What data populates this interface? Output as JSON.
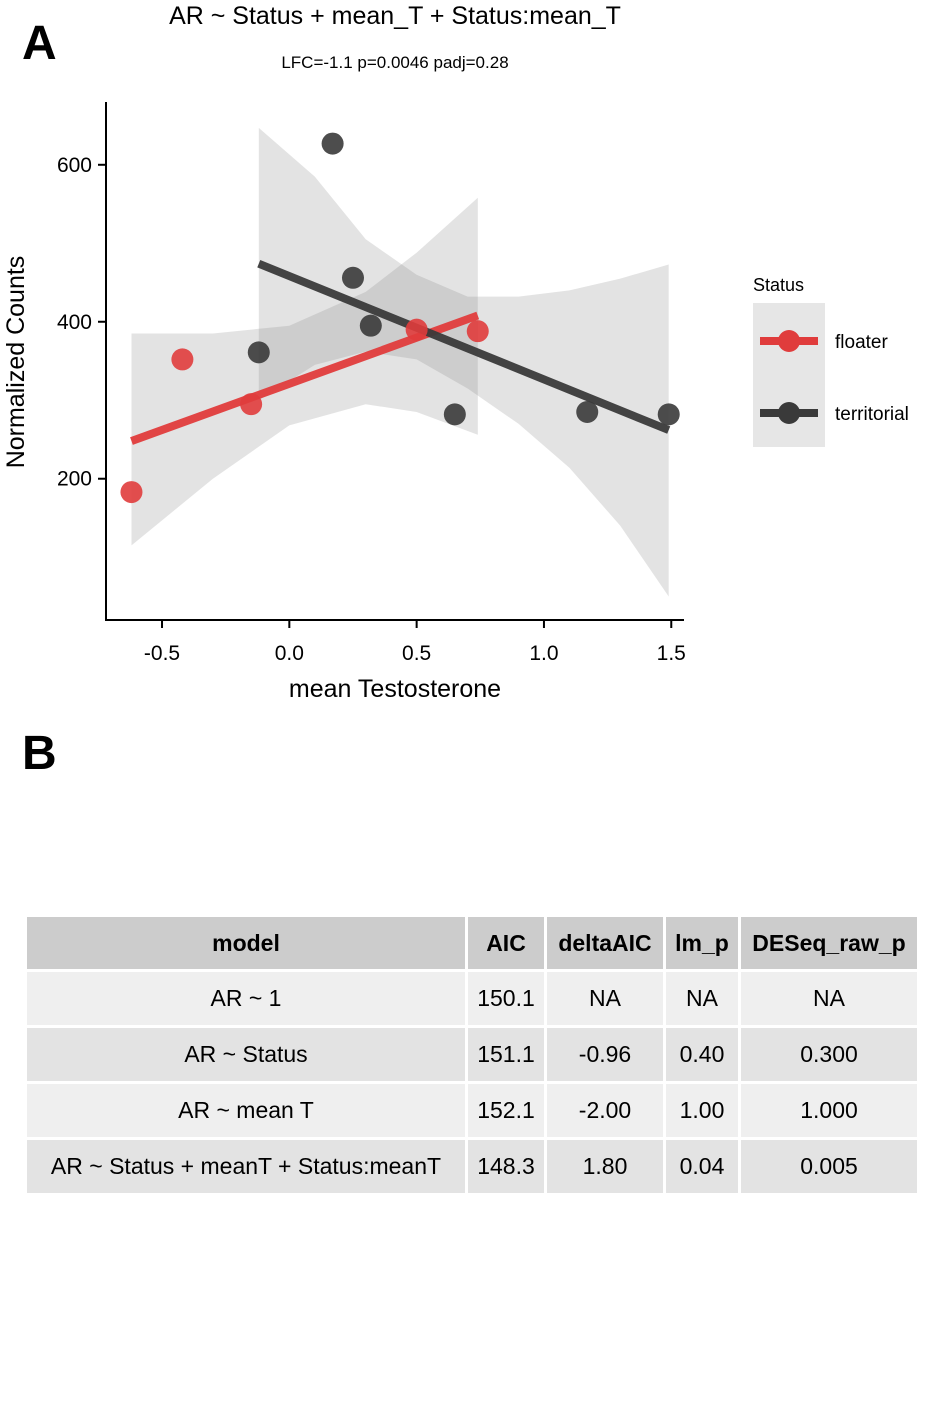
{
  "panels": {
    "a": "A",
    "b": "B"
  },
  "chart_data": {
    "type": "scatter",
    "title": "AR ~ Status + mean_T + Status:mean_T",
    "subtitle": "LFC=-1.1 p=0.0046 padj=0.28",
    "xlabel": "mean Testosterone",
    "ylabel": "Normalized Counts",
    "xlim": [
      -0.72,
      1.55
    ],
    "ylim": [
      20,
      680
    ],
    "x_ticks": [
      -0.5,
      0.0,
      0.5,
      1.0,
      1.5
    ],
    "x_tick_labels": [
      "-0.5",
      "0.0",
      "0.5",
      "1.0",
      "1.5"
    ],
    "y_ticks": [
      200,
      400,
      600
    ],
    "y_tick_labels": [
      "200",
      "400",
      "600"
    ],
    "grid": false,
    "legend": {
      "title": "Status",
      "position": "right"
    },
    "series": [
      {
        "name": "floater",
        "color": "#e03c3c",
        "points": [
          {
            "x": -0.62,
            "y": 183
          },
          {
            "x": -0.42,
            "y": 352
          },
          {
            "x": -0.15,
            "y": 295
          },
          {
            "x": 0.5,
            "y": 390
          },
          {
            "x": 0.74,
            "y": 388
          }
        ],
        "fit": {
          "x0": -0.62,
          "y0": 248,
          "x1": 0.74,
          "y1": 408
        },
        "ci_band": [
          {
            "x": -0.62,
            "lo": 115,
            "hi": 385
          },
          {
            "x": -0.3,
            "lo": 200,
            "hi": 385
          },
          {
            "x": 0.0,
            "lo": 268,
            "hi": 395
          },
          {
            "x": 0.3,
            "lo": 295,
            "hi": 438
          },
          {
            "x": 0.5,
            "lo": 285,
            "hi": 488
          },
          {
            "x": 0.74,
            "lo": 256,
            "hi": 558
          }
        ]
      },
      {
        "name": "territorial",
        "color": "#3a3a3a",
        "points": [
          {
            "x": -0.12,
            "y": 361
          },
          {
            "x": 0.17,
            "y": 627
          },
          {
            "x": 0.25,
            "y": 456
          },
          {
            "x": 0.32,
            "y": 395
          },
          {
            "x": 0.65,
            "y": 282
          },
          {
            "x": 1.17,
            "y": 285
          },
          {
            "x": 1.49,
            "y": 282
          }
        ],
        "fit": {
          "x0": -0.12,
          "y0": 474,
          "x1": 1.49,
          "y1": 262
        },
        "ci_band": [
          {
            "x": -0.12,
            "lo": 300,
            "hi": 647
          },
          {
            "x": 0.1,
            "lo": 345,
            "hi": 585
          },
          {
            "x": 0.3,
            "lo": 362,
            "hi": 505
          },
          {
            "x": 0.5,
            "lo": 352,
            "hi": 460
          },
          {
            "x": 0.7,
            "lo": 315,
            "hi": 432
          },
          {
            "x": 0.9,
            "lo": 270,
            "hi": 432
          },
          {
            "x": 1.1,
            "lo": 214,
            "hi": 440
          },
          {
            "x": 1.3,
            "lo": 140,
            "hi": 455
          },
          {
            "x": 1.49,
            "lo": 50,
            "hi": 473
          }
        ]
      }
    ]
  },
  "table": {
    "headers": [
      "model",
      "AIC",
      "deltaAIC",
      "lm_p",
      "DESeq_raw_p"
    ],
    "rows": [
      [
        "AR ~ 1",
        "150.1",
        "NA",
        "NA",
        "NA"
      ],
      [
        "AR ~ Status",
        "151.1",
        "-0.96",
        "0.40",
        "0.300"
      ],
      [
        "AR ~ mean T",
        "152.1",
        "-2.00",
        "1.00",
        "1.000"
      ],
      [
        "AR ~ Status + meanT + Status:meanT",
        "148.3",
        "1.80",
        "0.04",
        "0.005"
      ]
    ]
  }
}
